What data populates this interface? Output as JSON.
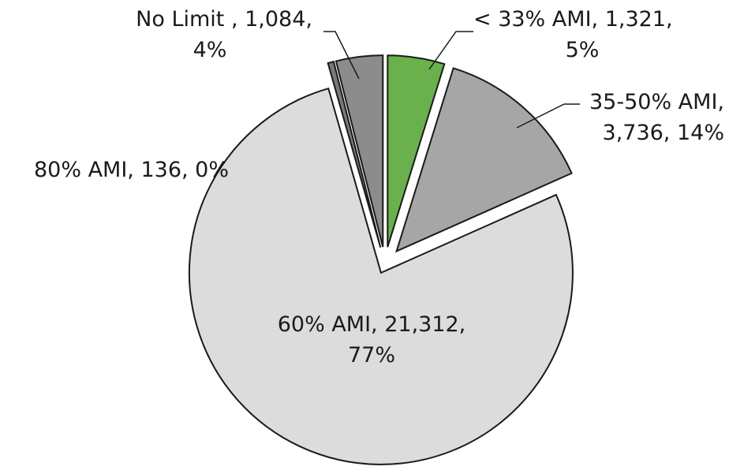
{
  "chart_data": {
    "type": "pie",
    "slices": [
      {
        "label": "< 33% AMI",
        "value": 1321,
        "value_text": "1,321",
        "percent_text": "5%",
        "color": "#6ab04c"
      },
      {
        "label": "35-50% AMI",
        "value": 3736,
        "value_text": "3,736",
        "percent_text": "14%",
        "color": "#a6a6a6"
      },
      {
        "label": "60% AMI",
        "value": 21312,
        "value_text": "21,312",
        "percent_text": "77%",
        "color": "#dcdcdc"
      },
      {
        "label": "80% AMI",
        "value": 136,
        "value_text": "136",
        "percent_text": "0%",
        "color": "#7a7a7a"
      },
      {
        "label": "No Limit ",
        "value": 1084,
        "value_text": "1,084",
        "percent_text": "4%",
        "color": "#8c8c8c"
      }
    ],
    "start_angle_deg": 0,
    "direction": "clockwise",
    "exploded": true,
    "legend": "none",
    "label_format": "category, value, percent"
  },
  "labels": {
    "s0_l1": "< 33% AMI, 1,321,",
    "s0_l2": "5%",
    "s1_l1": "35-50% AMI,",
    "s1_l2": "3,736, 14%",
    "s2_l1": "60% AMI, 21,312,",
    "s2_l2": "77%",
    "s3_l1": "80% AMI, 136, 0%",
    "s4_l1": "No Limit , 1,084,",
    "s4_l2": "4%"
  }
}
